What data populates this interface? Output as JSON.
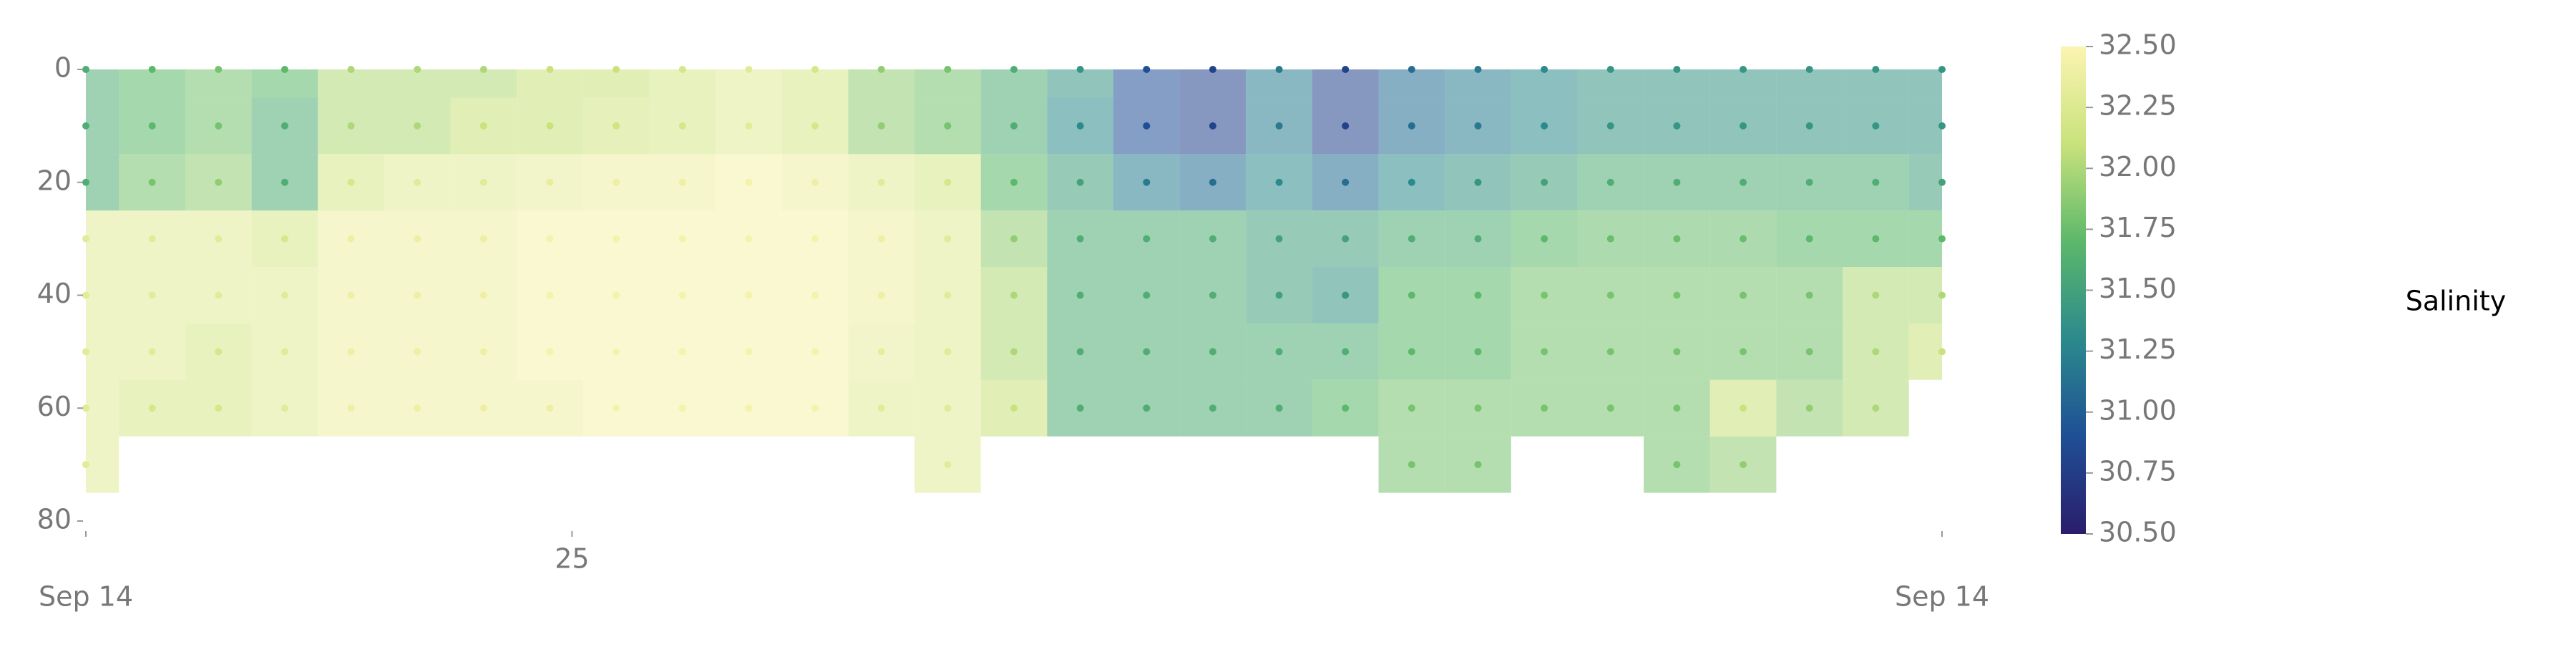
{
  "chart_data": {
    "type": "section",
    "colorbar_label": "Salinity",
    "x": [
      0,
      1.5,
      3,
      4.5,
      6,
      7.5,
      9,
      10.5,
      12,
      13.5,
      15,
      16.5,
      18,
      19.5,
      21,
      22.5,
      24,
      25.5,
      27,
      28.5,
      30,
      31.5,
      33,
      34.5,
      36,
      37.5,
      39,
      40.5,
      42
    ],
    "depths": [
      0,
      10,
      20,
      30,
      40,
      50,
      60,
      70
    ],
    "values": [
      [
        31.6,
        31.6,
        31.6,
        32.3,
        32.3,
        32.3,
        32.3,
        32.3
      ],
      [
        31.7,
        31.7,
        31.8,
        32.3,
        32.3,
        32.3,
        32.2,
        null
      ],
      [
        31.8,
        31.8,
        31.9,
        32.3,
        32.3,
        32.2,
        32.2,
        null
      ],
      [
        31.7,
        31.6,
        31.6,
        32.2,
        32.3,
        32.3,
        32.3,
        null
      ],
      [
        32.0,
        32.0,
        32.2,
        32.4,
        32.4,
        32.4,
        32.4,
        null
      ],
      [
        32.0,
        32.0,
        32.3,
        32.4,
        32.4,
        32.4,
        32.4,
        null
      ],
      [
        32.0,
        32.1,
        32.3,
        32.4,
        32.4,
        32.4,
        32.4,
        null
      ],
      [
        32.1,
        32.1,
        32.35,
        32.45,
        32.45,
        32.45,
        32.4,
        null
      ],
      [
        32.1,
        32.15,
        32.4,
        32.45,
        32.45,
        32.45,
        32.45,
        null
      ],
      [
        32.2,
        32.2,
        32.4,
        32.45,
        32.45,
        32.45,
        32.45,
        null
      ],
      [
        32.3,
        32.3,
        32.45,
        32.45,
        32.45,
        32.45,
        32.45,
        null
      ],
      [
        32.2,
        32.2,
        32.4,
        32.45,
        32.45,
        32.45,
        32.45,
        null
      ],
      [
        31.9,
        31.9,
        32.3,
        32.4,
        32.4,
        32.35,
        32.3,
        null
      ],
      [
        31.8,
        31.8,
        32.2,
        32.3,
        32.3,
        32.3,
        32.3,
        32.3
      ],
      [
        31.6,
        31.6,
        31.7,
        31.9,
        32.0,
        32.0,
        32.1,
        null
      ],
      [
        31.4,
        31.3,
        31.5,
        31.6,
        31.6,
        31.6,
        31.6,
        null
      ],
      [
        30.9,
        30.9,
        31.2,
        31.6,
        31.6,
        31.6,
        31.6,
        null
      ],
      [
        30.8,
        30.8,
        31.1,
        31.6,
        31.6,
        31.6,
        31.6,
        null
      ],
      [
        31.2,
        31.2,
        31.3,
        31.5,
        31.5,
        31.6,
        31.6,
        null
      ],
      [
        30.8,
        30.8,
        31.1,
        31.5,
        31.4,
        31.6,
        31.7,
        null
      ],
      [
        31.1,
        31.1,
        31.3,
        31.6,
        31.7,
        31.7,
        31.8,
        31.8
      ],
      [
        31.2,
        31.2,
        31.4,
        31.6,
        31.7,
        31.7,
        31.8,
        31.8
      ],
      [
        31.3,
        31.3,
        31.5,
        31.7,
        31.8,
        31.8,
        31.8,
        null
      ],
      [
        31.4,
        31.4,
        31.6,
        31.75,
        31.8,
        31.8,
        31.8,
        null
      ],
      [
        31.4,
        31.4,
        31.6,
        31.75,
        31.8,
        31.8,
        31.8,
        31.8
      ],
      [
        31.4,
        31.4,
        31.6,
        31.75,
        31.8,
        31.8,
        32.1,
        31.9
      ],
      [
        31.4,
        31.4,
        31.6,
        31.7,
        31.8,
        31.8,
        31.9,
        null
      ],
      [
        31.4,
        31.4,
        31.6,
        31.7,
        32.0,
        32.0,
        32.0,
        null
      ],
      [
        31.4,
        31.4,
        31.5,
        31.7,
        32.0,
        32.1,
        null,
        null
      ]
    ],
    "xlim": [
      0,
      42
    ],
    "xticks": [
      {
        "value": 0,
        "label": "Sep 14"
      },
      {
        "value": 11,
        "label": "25"
      },
      {
        "value": 42,
        "label": "Sep 14"
      }
    ],
    "ylim": [
      0,
      80
    ],
    "yticks": [
      0,
      20,
      40,
      60,
      80
    ],
    "clim": [
      30.5,
      32.5
    ],
    "cticks": [
      {
        "value": 30.5,
        "label": "30.50"
      },
      {
        "value": 30.75,
        "label": "30.75"
      },
      {
        "value": 31,
        "label": "31.00"
      },
      {
        "value": 31.25,
        "label": "31.25"
      },
      {
        "value": 31.5,
        "label": "31.50"
      },
      {
        "value": 31.75,
        "label": "31.75"
      },
      {
        "value": 32,
        "label": "32.00"
      },
      {
        "value": 32.25,
        "label": "32.25"
      },
      {
        "value": 32.5,
        "label": "32.50"
      }
    ],
    "colormap": [
      "#2a1d6b",
      "#1f4f96",
      "#2b8a8c",
      "#5cb86b",
      "#c9e27c",
      "#fbf4b2"
    ]
  }
}
